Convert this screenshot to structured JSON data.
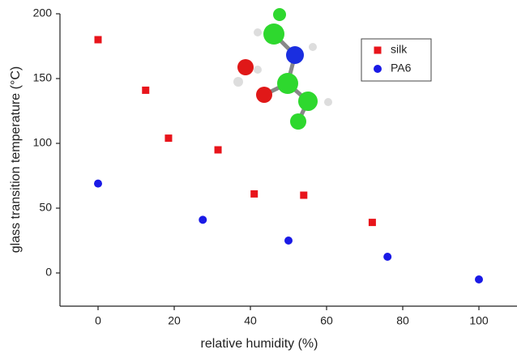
{
  "chart_data": {
    "type": "scatter",
    "x_label": "relative humidity (%)",
    "y_label": "glass transition temperature (°C)",
    "xlim": [
      -10,
      110
    ],
    "xticks": [
      0,
      20,
      40,
      60,
      80,
      100
    ],
    "ylim": [
      -25,
      200
    ],
    "yticks": [
      0,
      50,
      100,
      150,
      200
    ],
    "legend": "upper right",
    "series": [
      {
        "name": "silk",
        "color": "#e8141b",
        "marker": "square",
        "x": [
          0,
          12.5,
          18.5,
          31.5,
          41,
          54,
          72
        ],
        "values": [
          180,
          141,
          104,
          95,
          61,
          60,
          39
        ]
      },
      {
        "name": "PA6",
        "color": "#1a1ae6",
        "marker": "circle",
        "x": [
          0,
          27.5,
          50,
          76,
          100
        ],
        "values": [
          69,
          41,
          25,
          12.5,
          -5
        ]
      }
    ]
  }
}
